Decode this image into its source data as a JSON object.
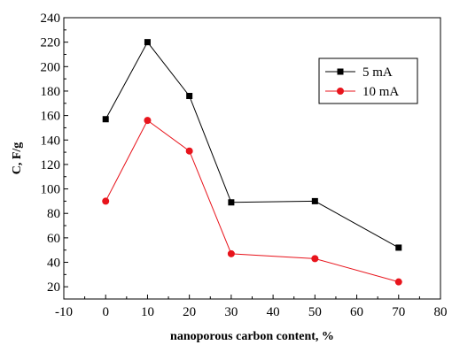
{
  "chart_data": {
    "type": "line",
    "xlabel": "nanoporous carbon content, %",
    "ylabel": "C, F/g",
    "xlim": [
      -10,
      80
    ],
    "ylim": [
      10,
      240
    ],
    "xticks": [
      -10,
      0,
      10,
      20,
      30,
      40,
      50,
      60,
      70,
      80
    ],
    "yticks": [
      20,
      40,
      60,
      80,
      100,
      120,
      140,
      160,
      180,
      200,
      220,
      240
    ],
    "grid": false,
    "legend_position": "top-right",
    "series": [
      {
        "name": "5 mA",
        "color": "#000000",
        "marker": "square",
        "x": [
          0,
          10,
          20,
          30,
          50,
          70
        ],
        "y": [
          157,
          220,
          176,
          89,
          90,
          52
        ]
      },
      {
        "name": "10 mA",
        "color": "#e8141c",
        "marker": "circle",
        "x": [
          0,
          10,
          20,
          30,
          50,
          70
        ],
        "y": [
          90,
          156,
          131,
          47,
          43,
          24
        ]
      }
    ]
  }
}
